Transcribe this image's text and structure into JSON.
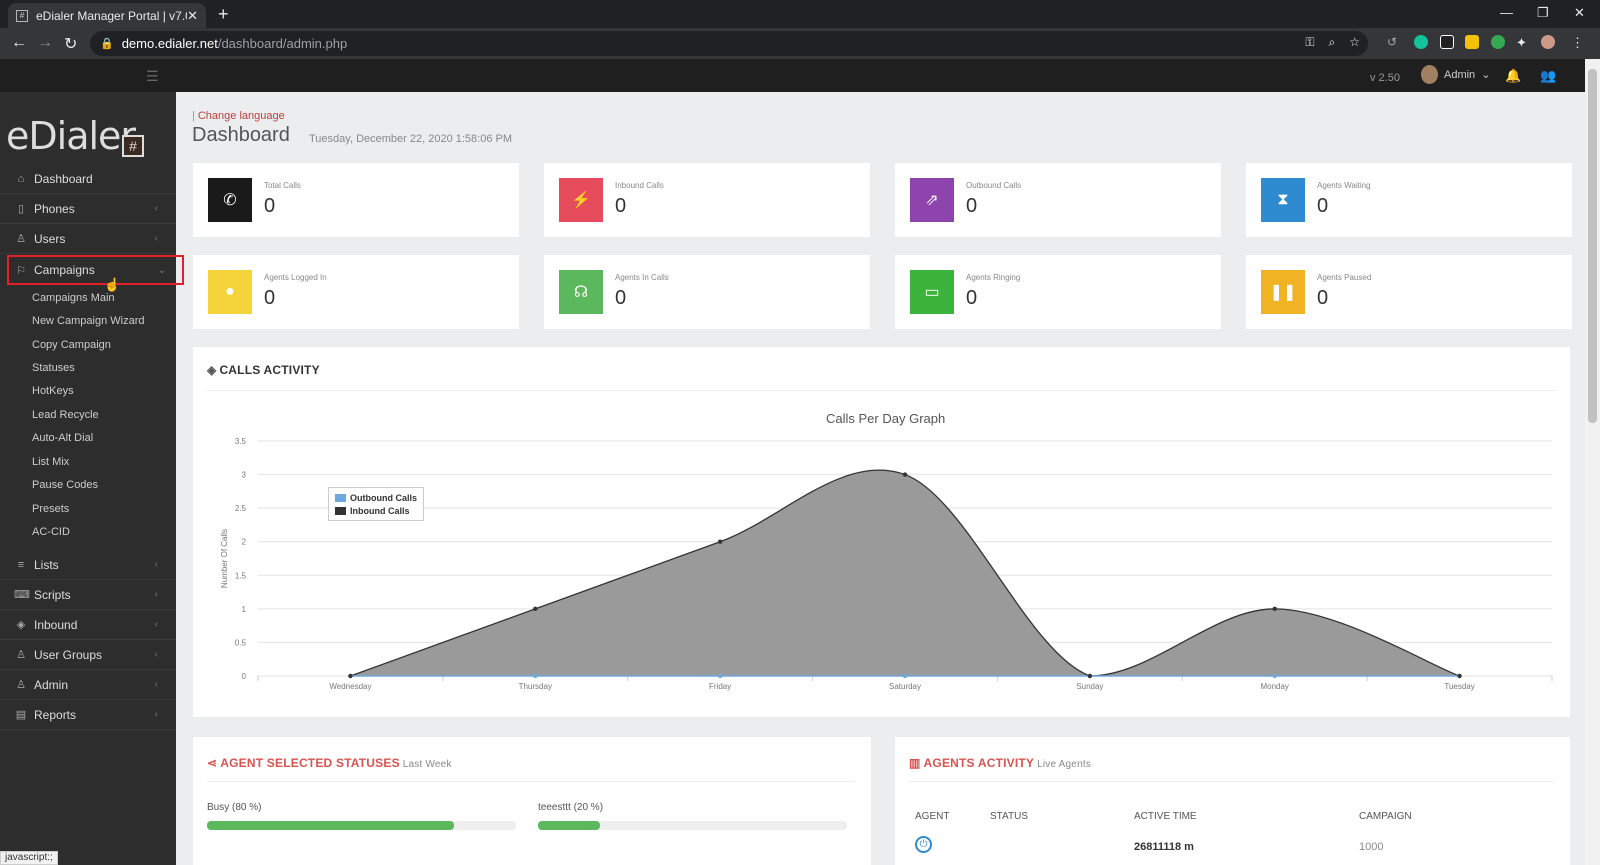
{
  "browser": {
    "tab_title": "eDialer Manager Portal | v7.0",
    "url_host": "demo.edialer.net",
    "url_path": "/dashboard/admin.php",
    "status_text": "javascript:;"
  },
  "header": {
    "version": "v 2.50",
    "user": "Admin"
  },
  "sidebar": {
    "logo": "eDialer",
    "logo_mark": "#",
    "items": [
      {
        "label": "Dashboard",
        "icon": "home-icon"
      },
      {
        "label": "Phones",
        "icon": "phone-icon"
      },
      {
        "label": "Users",
        "icon": "user-icon"
      },
      {
        "label": "Campaigns",
        "icon": "flag-icon"
      },
      {
        "label": "Lists",
        "icon": "list-icon"
      },
      {
        "label": "Scripts",
        "icon": "code-icon"
      },
      {
        "label": "Inbound",
        "icon": "diamond-icon"
      },
      {
        "label": "User Groups",
        "icon": "users-icon"
      },
      {
        "label": "Admin",
        "icon": "user-icon"
      },
      {
        "label": "Reports",
        "icon": "document-icon"
      }
    ],
    "campaign_sub": [
      "Campaigns Main",
      "New Campaign Wizard",
      "Copy Campaign",
      "Statuses",
      "HotKeys",
      "Lead Recycle",
      "Auto-Alt Dial",
      "List Mix",
      "Pause Codes",
      "Presets",
      "AC-CID"
    ]
  },
  "page": {
    "change_language": "Change language",
    "title": "Dashboard",
    "datetime": "Tuesday, December 22, 2020 1:58:06 PM"
  },
  "stats": [
    {
      "label": "Total Calls",
      "value": "0",
      "color": "#1a1a1a",
      "icon": "phone-icon"
    },
    {
      "label": "Inbound Calls",
      "value": "0",
      "color": "#e74c5c",
      "icon": "plug-icon"
    },
    {
      "label": "Outbound Calls",
      "value": "0",
      "color": "#8e44ad",
      "icon": "external-link-icon"
    },
    {
      "label": "Agents Waiting",
      "value": "0",
      "color": "#2e8bcf",
      "icon": "hourglass-icon"
    },
    {
      "label": "Agents Logged In",
      "value": "0",
      "color": "#f5d33a",
      "icon": "user-icon"
    },
    {
      "label": "Agents In Calls",
      "value": "0",
      "color": "#5cb85c",
      "icon": "headset-icon"
    },
    {
      "label": "Agents Ringing",
      "value": "0",
      "color": "#3cb43c",
      "icon": "monitor-icon"
    },
    {
      "label": "Agents Paused",
      "value": "0",
      "color": "#f0b323",
      "icon": "pause-icon"
    }
  ],
  "calls_activity": {
    "title": "CALLS ACTIVITY"
  },
  "chart_data": {
    "type": "area",
    "title": "Calls Per Day Graph",
    "xlabel": "",
    "ylabel": "Number Of Calls",
    "categories": [
      "Wednesday",
      "Thursday",
      "Friday",
      "Saturday",
      "Sunday",
      "Monday",
      "Tuesday"
    ],
    "ylim": [
      0,
      3.5
    ],
    "yticks": [
      "0",
      "0.5",
      "1",
      "1.5",
      "2",
      "2.5",
      "3",
      "3.5"
    ],
    "series": [
      {
        "name": "Outbound Calls",
        "values": [
          0,
          0,
          0,
          0,
          0,
          0,
          0
        ],
        "color": "#6fa8dc"
      },
      {
        "name": "Inbound Calls",
        "values": [
          0,
          1,
          2,
          3,
          0,
          1,
          0
        ],
        "color": "#333333"
      }
    ],
    "legend": "top-left",
    "grid": true
  },
  "agent_statuses": {
    "title": "AGENT SELECTED STATUSES",
    "subtitle": "Last Week",
    "items": [
      {
        "label": "Busy (80 %)",
        "percent": 80
      },
      {
        "label": "teeesttt (20 %)",
        "percent": 20
      }
    ]
  },
  "agents_activity": {
    "title": "AGENTS ACTIVITY",
    "subtitle": "Live Agents",
    "columns": [
      "AGENT",
      "STATUS",
      "ACTIVE TIME",
      "CAMPAIGN"
    ],
    "rows": [
      {
        "status": "",
        "active_time": "26811118 m",
        "campaign": "1000"
      }
    ]
  }
}
